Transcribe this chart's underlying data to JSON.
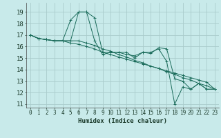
{
  "xlabel": "Humidex (Indice chaleur)",
  "background_color": "#c8eaea",
  "grid_color": "#aacccc",
  "line_color": "#1a6b5a",
  "xlim": [
    -0.5,
    23.5
  ],
  "ylim": [
    10.7,
    19.8
  ],
  "yticks": [
    11,
    12,
    13,
    14,
    15,
    16,
    17,
    18,
    19
  ],
  "xticks": [
    0,
    1,
    2,
    3,
    4,
    5,
    6,
    7,
    8,
    9,
    10,
    11,
    12,
    13,
    14,
    15,
    16,
    17,
    18,
    19,
    20,
    21,
    22,
    23
  ],
  "series": [
    [
      17.0,
      16.7,
      16.6,
      16.5,
      16.5,
      16.5,
      19.0,
      19.0,
      18.5,
      15.5,
      15.5,
      15.5,
      15.5,
      15.0,
      15.5,
      15.5,
      15.8,
      14.7,
      11.0,
      12.5,
      12.3,
      12.8,
      12.3,
      12.3
    ],
    [
      17.0,
      16.7,
      16.6,
      16.5,
      16.5,
      16.5,
      16.5,
      16.3,
      16.1,
      15.8,
      15.6,
      15.3,
      15.1,
      14.8,
      14.6,
      14.3,
      14.1,
      13.8,
      13.6,
      13.3,
      13.1,
      12.8,
      12.6,
      12.3
    ],
    [
      17.0,
      16.7,
      16.6,
      16.5,
      16.5,
      16.3,
      16.2,
      16.0,
      15.8,
      15.5,
      15.3,
      15.1,
      14.9,
      14.7,
      14.5,
      14.3,
      14.1,
      13.9,
      13.7,
      13.5,
      13.3,
      13.1,
      12.9,
      12.3
    ],
    [
      17.0,
      16.7,
      16.6,
      16.5,
      16.5,
      18.3,
      19.0,
      19.0,
      16.5,
      15.3,
      15.5,
      15.5,
      15.3,
      15.2,
      15.5,
      15.4,
      15.9,
      15.8,
      13.2,
      13.0,
      12.3,
      12.8,
      12.3,
      12.3
    ]
  ],
  "xlabel_fontsize": 6.5,
  "ytick_fontsize": 6.5,
  "xtick_fontsize": 5.5
}
